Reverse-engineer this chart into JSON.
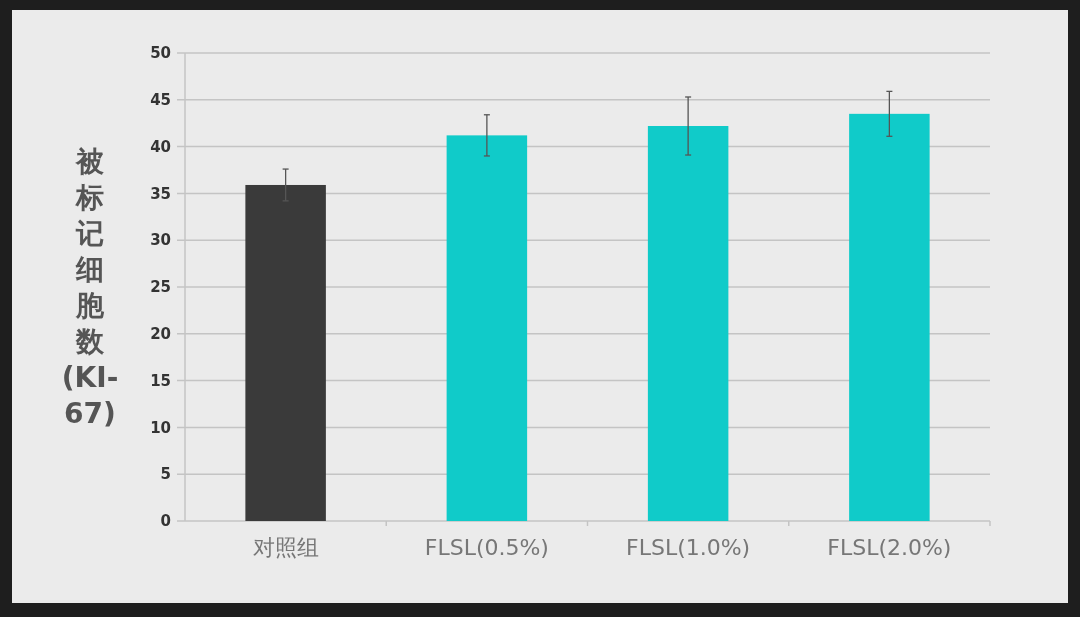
{
  "chart_data": {
    "type": "bar",
    "ylabel": "被标记细胞数(KI-67)",
    "categories": [
      "对照组",
      "FLSL(0.5%)",
      "FLSL(1.0%)",
      "FLSL(2.0%)"
    ],
    "values": [
      35.9,
      41.2,
      42.2,
      43.5
    ],
    "colors": [
      "#3a3a3a",
      "#10cbc9",
      "#10cbc9",
      "#10cbc9"
    ],
    "errors": [
      1.7,
      2.2,
      3.1,
      2.4
    ],
    "ylim": [
      0,
      50
    ],
    "yticks": [
      0,
      5,
      10,
      15,
      20,
      25,
      30,
      35,
      40,
      45,
      50
    ],
    "grid": "y"
  }
}
